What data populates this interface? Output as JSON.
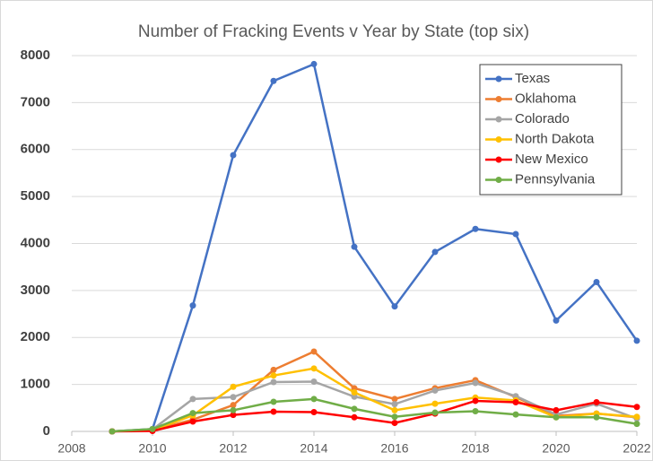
{
  "chart_data": {
    "type": "line",
    "title": "Number of Fracking Events v Year by State (top six)",
    "x": [
      2009,
      2010,
      2011,
      2012,
      2013,
      2014,
      2015,
      2016,
      2017,
      2018,
      2019,
      2020,
      2021,
      2022
    ],
    "series": [
      {
        "name": "Texas",
        "color": "#4472c4",
        "values": [
          0,
          50,
          2680,
          5880,
          7460,
          7820,
          3930,
          2660,
          3820,
          4310,
          4200,
          2360,
          3180,
          1930
        ]
      },
      {
        "name": "Oklahoma",
        "color": "#ed7d31",
        "values": [
          0,
          30,
          250,
          560,
          1310,
          1700,
          920,
          690,
          920,
          1090,
          730,
          330,
          380,
          300
        ]
      },
      {
        "name": "Colorado",
        "color": "#a5a5a5",
        "values": [
          0,
          40,
          690,
          730,
          1050,
          1060,
          740,
          580,
          870,
          1030,
          750,
          360,
          590,
          270
        ]
      },
      {
        "name": "North Dakota",
        "color": "#ffc000",
        "values": [
          0,
          30,
          340,
          950,
          1190,
          1340,
          830,
          450,
          590,
          720,
          660,
          300,
          380,
          310
        ]
      },
      {
        "name": "New Mexico",
        "color": "#ff0000",
        "values": [
          0,
          10,
          210,
          350,
          420,
          410,
          300,
          180,
          380,
          650,
          620,
          450,
          620,
          520
        ]
      },
      {
        "name": "Pennsylvania",
        "color": "#70ad47",
        "values": [
          0,
          50,
          390,
          450,
          630,
          690,
          480,
          310,
          400,
          430,
          360,
          300,
          300,
          160
        ]
      }
    ],
    "xlim": [
      2008,
      2022
    ],
    "xticks": [
      2008,
      2010,
      2012,
      2014,
      2016,
      2018,
      2020,
      2022
    ],
    "ylim": [
      0,
      8000
    ],
    "yticks": [
      0,
      1000,
      2000,
      3000,
      4000,
      5000,
      6000,
      7000,
      8000
    ],
    "grid": true,
    "legend": "top-right"
  }
}
